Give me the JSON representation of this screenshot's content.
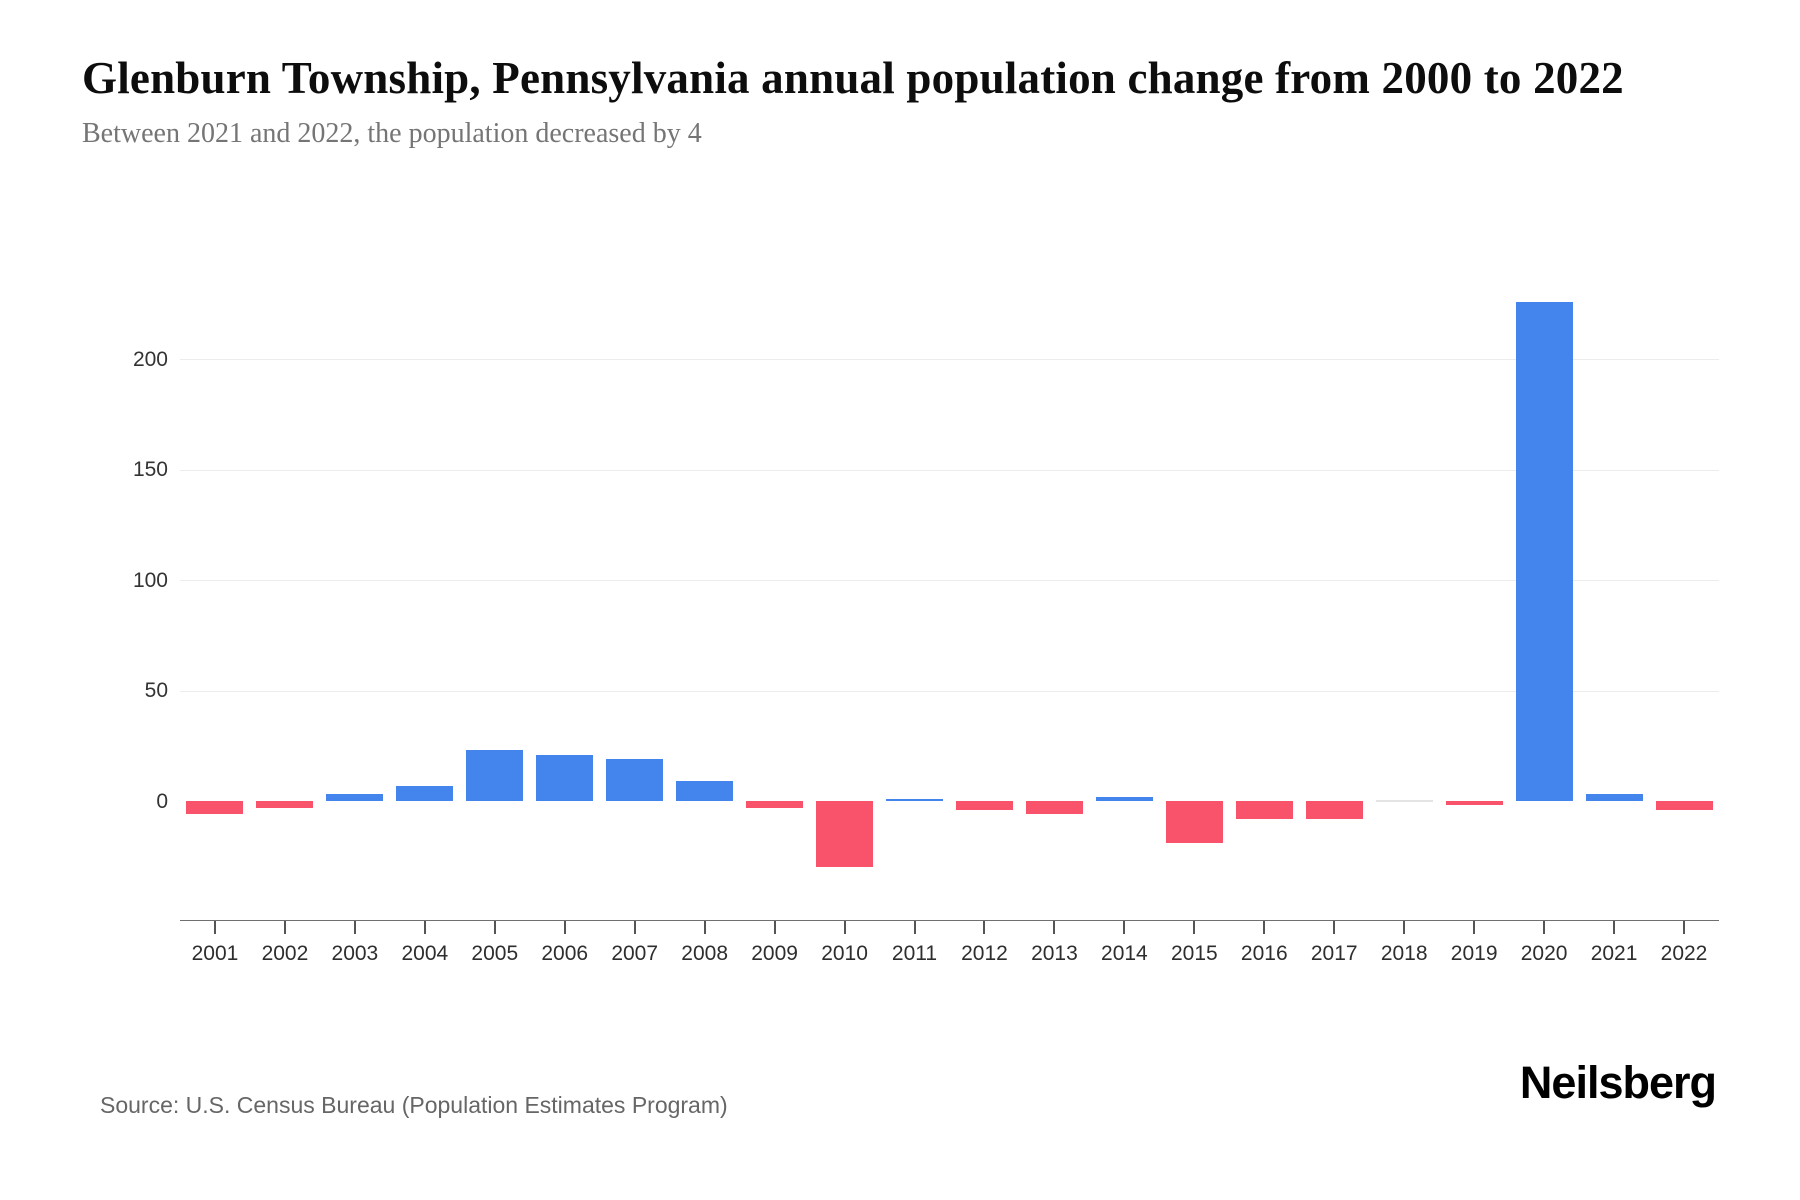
{
  "header": {
    "title": "Glenburn Township, Pennsylvania annual population change from 2000 to 2022",
    "subtitle": "Between 2021 and 2022, the population decreased by 4"
  },
  "chart_data": {
    "type": "bar",
    "title": "Glenburn Township, Pennsylvania annual population change from 2000 to 2022",
    "categories": [
      "2001",
      "2002",
      "2003",
      "2004",
      "2005",
      "2006",
      "2007",
      "2008",
      "2009",
      "2010",
      "2011",
      "2012",
      "2013",
      "2014",
      "2015",
      "2016",
      "2017",
      "2018",
      "2019",
      "2020",
      "2021",
      "2022"
    ],
    "values": [
      -6,
      -3,
      3,
      7,
      23,
      21,
      19,
      9,
      -3,
      -30,
      1,
      -4,
      -6,
      2,
      -19,
      -8,
      -8,
      0,
      -2,
      226,
      3,
      -4
    ],
    "xlabel": "",
    "ylabel": "",
    "y_ticks": [
      0,
      50,
      100,
      150,
      200
    ],
    "ylim": [
      -54,
      250
    ],
    "grid": true,
    "legend": false,
    "colors": {
      "positive": "#4385EC",
      "negative": "#F9526B",
      "zero": "#E4E4E4"
    }
  },
  "footer": {
    "source": "Source: U.S. Census Bureau (Population Estimates Program)",
    "brand": "Neilsberg"
  }
}
